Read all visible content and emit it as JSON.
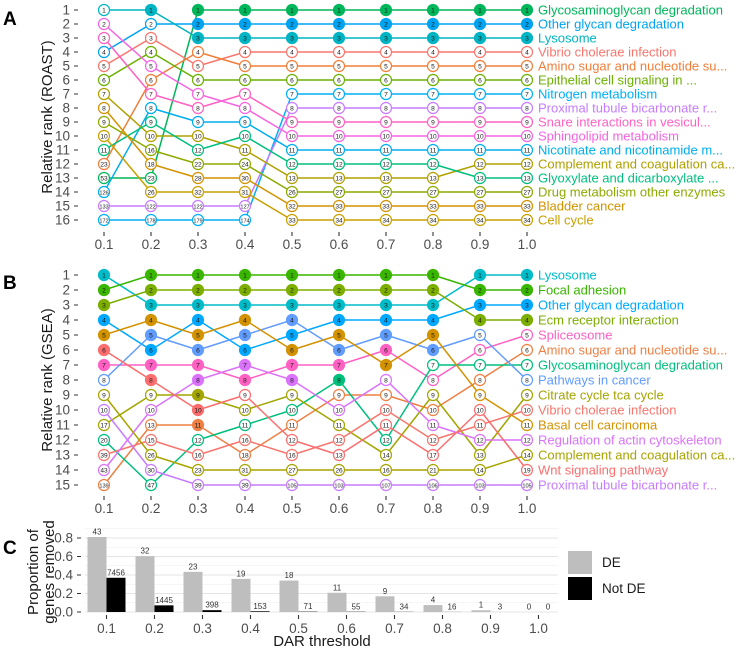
{
  "chart_data": [
    {
      "type": "bump",
      "panel_label": "A",
      "title": "",
      "xlabel": "",
      "ylabel": "Relative rank (ROAST)",
      "x": [
        "0.1",
        "0.2",
        "0.3",
        "0.4",
        "0.5",
        "0.6",
        "0.7",
        "0.8",
        "0.9",
        "1.0"
      ],
      "y_ticks": [
        "1",
        "2",
        "3",
        "4",
        "5",
        "6",
        "7",
        "8",
        "9",
        "10",
        "11",
        "12",
        "13",
        "14",
        "15",
        "16"
      ],
      "n_significant": [
        0,
        1,
        3,
        3,
        3,
        3,
        3,
        3,
        3,
        3
      ],
      "grid": true,
      "legend": "right (direct labels)",
      "series": [
        {
          "name": "Glycosaminoglycan degradation",
          "color": "#00B65A",
          "ranks": [
            53,
            23,
            1,
            1,
            1,
            1,
            1,
            1,
            1,
            1
          ]
        },
        {
          "name": "Other glycan degradation",
          "color": "#00A3F0",
          "ranks": [
            4,
            2,
            2,
            2,
            2,
            2,
            2,
            2,
            2,
            2
          ]
        },
        {
          "name": "Lysosome",
          "color": "#00B4C4",
          "ranks": [
            1,
            1,
            3,
            3,
            3,
            3,
            3,
            3,
            3,
            3
          ]
        },
        {
          "name": "Vibrio cholerae infection",
          "color": "#F8766D",
          "ranks": [
            5,
            3,
            5,
            4,
            4,
            4,
            4,
            4,
            4,
            4
          ]
        },
        {
          "name": "Amino sugar and nucleotide su...",
          "color": "#F07E38",
          "ranks": [
            23,
            6,
            4,
            5,
            5,
            5,
            5,
            5,
            5,
            5
          ]
        },
        {
          "name": "Epithelial cell signaling in ...",
          "color": "#6BB100",
          "ranks": [
            6,
            4,
            6,
            6,
            6,
            6,
            6,
            6,
            6,
            6
          ]
        },
        {
          "name": "Nitrogen metabolism",
          "color": "#00B0F6",
          "ranks": [
            172,
            178,
            179,
            174,
            7,
            7,
            7,
            7,
            7,
            7
          ]
        },
        {
          "name": "Proximal tubule bicarbonate r...",
          "color": "#C77CFF",
          "ranks": [
            133,
            122,
            122,
            127,
            8,
            8,
            8,
            8,
            8,
            8
          ]
        },
        {
          "name": "Snare interactions in vesicul...",
          "color": "#FF61C3",
          "ranks": [
            3,
            7,
            8,
            7,
            9,
            9,
            9,
            9,
            9,
            9
          ]
        },
        {
          "name": "Sphingolipid metabolism",
          "color": "#F564E3",
          "ranks": [
            2,
            5,
            7,
            8,
            10,
            10,
            10,
            10,
            10,
            10
          ]
        },
        {
          "name": "Nicotinate and nicotinamide m...",
          "color": "#00AEEF",
          "ranks": [
            126,
            8,
            9,
            9,
            11,
            11,
            11,
            11,
            11,
            11
          ]
        },
        {
          "name": "Complement and coagulation ca...",
          "color": "#B0A000",
          "ranks": [
            7,
            10,
            10,
            11,
            13,
            13,
            13,
            13,
            12,
            12
          ]
        },
        {
          "name": "Glyoxylate and dicarboxylate ...",
          "color": "#00BF7D",
          "ranks": [
            11,
            9,
            12,
            10,
            12,
            12,
            12,
            12,
            13,
            13
          ]
        },
        {
          "name": "Drug metabolism other enzymes",
          "color": "#8DAA00",
          "ranks": [
            9,
            16,
            22,
            24,
            26,
            27,
            27,
            27,
            27,
            27
          ]
        },
        {
          "name": "Bladder cancer",
          "color": "#D39200",
          "ranks": [
            8,
            18,
            28,
            30,
            32,
            33,
            33,
            33,
            33,
            33
          ]
        },
        {
          "name": "Cell cycle",
          "color": "#C9A000",
          "ranks": [
            10,
            26,
            32,
            31,
            33,
            34,
            34,
            34,
            34,
            34
          ]
        }
      ]
    },
    {
      "type": "bump",
      "panel_label": "B",
      "title": "",
      "xlabel": "",
      "ylabel": "Relative rank (GSEA)",
      "x": [
        "0.1",
        "0.2",
        "0.3",
        "0.4",
        "0.5",
        "0.6",
        "0.7",
        "0.8",
        "0.9",
        "1.0"
      ],
      "y_ticks": [
        "1",
        "2",
        "3",
        "4",
        "5",
        "6",
        "7",
        "8",
        "9",
        "10",
        "11",
        "12",
        "13",
        "14",
        "15"
      ],
      "n_significant": [
        7,
        8,
        11,
        8,
        8,
        8,
        7,
        6,
        4,
        4
      ],
      "grid": true,
      "legend": "right (direct labels)",
      "series": [
        {
          "name": "Lysosome",
          "color": "#00BCC8",
          "ranks": [
            1,
            3,
            3,
            3,
            3,
            3,
            3,
            3,
            1,
            1
          ]
        },
        {
          "name": "Focal adhesion",
          "color": "#39B600",
          "ranks": [
            2,
            1,
            1,
            1,
            1,
            1,
            1,
            1,
            2,
            2
          ]
        },
        {
          "name": "Other glycan degradation",
          "color": "#00A9FF",
          "ranks": [
            4,
            6,
            4,
            6,
            5,
            4,
            4,
            4,
            3,
            3
          ]
        },
        {
          "name": "Ecm receptor interaction",
          "color": "#7CAE00",
          "ranks": [
            3,
            2,
            2,
            2,
            2,
            2,
            2,
            2,
            4,
            4
          ]
        },
        {
          "name": "Spliceosome",
          "color": "#FF61C3",
          "ranks": [
            7,
            7,
            7,
            8,
            7,
            7,
            6,
            8,
            6,
            5
          ]
        },
        {
          "name": "Amino sugar and nucleotide su...",
          "color": "#EE8044",
          "ranks": [
            139,
            13,
            11,
            18,
            11,
            9,
            9,
            10,
            8,
            6
          ]
        },
        {
          "name": "Glycosaminoglycan degradation",
          "color": "#00BF7D",
          "ranks": [
            20,
            47,
            12,
            11,
            10,
            8,
            12,
            7,
            7,
            7
          ]
        },
        {
          "name": "Pathways in cancer",
          "color": "#619CFF",
          "ranks": [
            8,
            5,
            6,
            5,
            4,
            6,
            5,
            6,
            5,
            8
          ]
        },
        {
          "name": "Citrate cycle tca cycle",
          "color": "#A3A500",
          "ranks": [
            17,
            9,
            9,
            10,
            9,
            11,
            14,
            9,
            13,
            9
          ]
        },
        {
          "name": "Vibrio cholerae infection",
          "color": "#F8766D",
          "ranks": [
            39,
            15,
            16,
            16,
            16,
            12,
            10,
            12,
            11,
            10
          ]
        },
        {
          "name": "Basal cell carcinoma",
          "color": "#D39200",
          "ranks": [
            5,
            4,
            5,
            4,
            6,
            5,
            7,
            5,
            9,
            11
          ]
        },
        {
          "name": "Regulation of actin cytoskeleton",
          "color": "#DB72FB",
          "ranks": [
            43,
            10,
            8,
            7,
            8,
            10,
            8,
            11,
            12,
            12
          ]
        },
        {
          "name": "Complement and coagulation ca...",
          "color": "#A8A400",
          "ranks": [
            9,
            26,
            23,
            31,
            27,
            26,
            16,
            21,
            14,
            14
          ]
        },
        {
          "name": "Wnt signaling pathway",
          "color": "#FC6E6E",
          "ranks": [
            6,
            8,
            10,
            9,
            12,
            13,
            11,
            17,
            10,
            19
          ]
        },
        {
          "name": "Proximal tubule bicarbonate r...",
          "color": "#C77CFF",
          "ranks": [
            10,
            30,
            39,
            39,
            105,
            103,
            107,
            106,
            103,
            105
          ]
        }
      ]
    },
    {
      "type": "bar",
      "panel_label": "C",
      "title": "",
      "xlabel": "DAR threshold",
      "ylabel": [
        "Proportion of",
        "genes removed"
      ],
      "categories": [
        "0.1",
        "0.2",
        "0.3",
        "0.4",
        "0.5",
        "0.6",
        "0.7",
        "0.8",
        "0.9",
        "1.0"
      ],
      "ylim": [
        0,
        0.9
      ],
      "y_ticks": [
        0,
        0.2,
        0.4,
        0.6,
        0.8
      ],
      "y_tick_labels": [
        "0.0",
        "0.2",
        "0.4",
        "0.6",
        "0.8"
      ],
      "grid": true,
      "legend": "right",
      "series": [
        {
          "name": "DE",
          "color": "#BEBEBE",
          "values": [
            0.811,
            0.604,
            0.434,
            0.358,
            0.34,
            0.208,
            0.17,
            0.075,
            0.019,
            0
          ],
          "labels": [
            "43",
            "32",
            "23",
            "19",
            "18",
            "11",
            "9",
            "4",
            "1",
            "0"
          ]
        },
        {
          "name": "Not DE",
          "color": "#000000",
          "values": [
            0.37,
            0.0717,
            0.0198,
            0.0076,
            0.0035,
            0.0027,
            0.0017,
            0.0008,
            0.0001,
            0
          ],
          "labels": [
            "7456",
            "1445",
            "398",
            "153",
            "71",
            "55",
            "34",
            "16",
            "3",
            "0"
          ]
        }
      ]
    }
  ]
}
